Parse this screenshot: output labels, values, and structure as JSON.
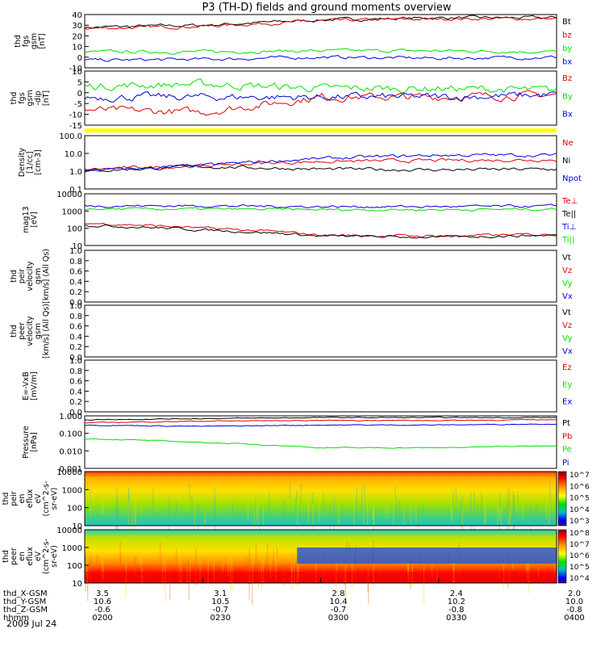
{
  "title": "P3 (TH-D) fields and ground moments overview",
  "date": "2009 Jul 24",
  "colors": {
    "black": "#000000",
    "red": "#e00000",
    "blue": "#0000e0",
    "green": "#00e000",
    "yellow": "#ffff00"
  },
  "x_axis": {
    "rows": [
      {
        "label": "thd_X-GSM",
        "values": [
          "3.5",
          "3.1",
          "2.8",
          "2.4",
          "2.0"
        ]
      },
      {
        "label": "thd_Y-GSM",
        "values": [
          "10.6",
          "10.5",
          "10.4",
          "10.2",
          "10.0"
        ]
      },
      {
        "label": "thd_Z-GSM",
        "values": [
          "-0.6",
          "-0.7",
          "-0.7",
          "-0.8",
          "-0.8"
        ]
      },
      {
        "label": "hhmm",
        "values": [
          "0200",
          "0230",
          "0300",
          "0330",
          "0400"
        ]
      }
    ]
  },
  "panels": [
    {
      "ylabel": [
        "thd",
        "fgs",
        "gsm",
        "[nT]"
      ],
      "ticks": [
        "40",
        "30",
        "20",
        "10",
        "0",
        "-10"
      ],
      "legend": [
        {
          "text": "Bt",
          "color": "#000000"
        },
        {
          "text": "bz",
          "color": "#e00000"
        },
        {
          "text": "by",
          "color": "#00e000"
        },
        {
          "text": "bx",
          "color": "#0000e0"
        }
      ]
    },
    {
      "ylabel": [
        "thd",
        "fgs",
        "gsm",
        "-dip",
        "[nT]"
      ],
      "ticks": [
        "10",
        "5",
        "0",
        "-5",
        "-10",
        "-15"
      ],
      "legend": [
        {
          "text": "Bz",
          "color": "#e00000"
        },
        {
          "text": "By",
          "color": "#00e000"
        },
        {
          "text": "Bx",
          "color": "#0000e0"
        }
      ]
    },
    {
      "ylabel": [
        "Density",
        "[1/cc]",
        "[cm-3]"
      ],
      "ticks": [
        "100.0",
        "10.0",
        "1.0",
        "0.1"
      ],
      "legend": [
        {
          "text": "Ne",
          "color": "#e00000"
        },
        {
          "text": "Ni",
          "color": "#000000"
        },
        {
          "text": "Npot",
          "color": "#0000e0"
        }
      ]
    },
    {
      "ylabel": [
        "mag13",
        "[eV]"
      ],
      "ticks": [
        "10000",
        "1000",
        "100",
        "10"
      ],
      "legend": [
        {
          "text": "Te⊥",
          "color": "#e00000"
        },
        {
          "text": "Te||",
          "color": "#000000"
        },
        {
          "text": "Ti⊥",
          "color": "#0000e0"
        },
        {
          "text": "Ti||",
          "color": "#00e000"
        }
      ]
    },
    {
      "ylabel": [
        "thd",
        "peir",
        "velocity",
        "gsm",
        "[km/s] (All Qs)"
      ],
      "ticks": [
        "1.0",
        "0.8",
        "0.6",
        "0.4",
        "0.2",
        "0.0"
      ],
      "legend": [
        {
          "text": "Vt",
          "color": "#000000"
        },
        {
          "text": "Vz",
          "color": "#e00000"
        },
        {
          "text": "Vy",
          "color": "#00e000"
        },
        {
          "text": "Vx",
          "color": "#0000e0"
        }
      ]
    },
    {
      "ylabel": [
        "thd",
        "peer",
        "velocity",
        "gsm",
        "[km/s] (All Qs)"
      ],
      "ticks": [
        "1.0",
        "0.8",
        "0.6",
        "0.4",
        "0.2",
        "0.0"
      ],
      "legend": [
        {
          "text": "Vt",
          "color": "#000000"
        },
        {
          "text": "Vz",
          "color": "#e00000"
        },
        {
          "text": "Vy",
          "color": "#00e000"
        },
        {
          "text": "Vx",
          "color": "#0000e0"
        }
      ]
    },
    {
      "ylabel": [
        "E=-VxB",
        "[mV/m]"
      ],
      "ticks": [
        "1.0",
        "0.8",
        "0.6",
        "0.4",
        "0.2",
        "0.0"
      ],
      "legend": [
        {
          "text": "Ez",
          "color": "#e00000"
        },
        {
          "text": "Ey",
          "color": "#00e000"
        },
        {
          "text": "Ex",
          "color": "#0000e0"
        }
      ]
    },
    {
      "ylabel": [
        "Pressure",
        "[nPa]"
      ],
      "ticks": [
        "1.000",
        "0.100",
        "0.010",
        "0.001"
      ],
      "legend": [
        {
          "text": "Pt",
          "color": "#000000"
        },
        {
          "text": "Pb",
          "color": "#e00000"
        },
        {
          "text": "Pe",
          "color": "#00e000"
        },
        {
          "text": "Pi",
          "color": "#0000e0"
        }
      ]
    },
    {
      "ylabel": [
        "thd",
        "peir",
        "en",
        "eflux",
        "eV",
        "(cm^2-s-",
        "sr-eV)"
      ],
      "ticks": [
        "10000",
        "1000",
        "100",
        "10"
      ],
      "colorbar": [
        "10^7",
        "10^6",
        "10^5",
        "10^4",
        "10^3"
      ]
    },
    {
      "ylabel": [
        "thd",
        "peer",
        "en",
        "eflux",
        "eV",
        "(cm^2-s-",
        "sr-eV)"
      ],
      "ticks": [
        "10000",
        "1000",
        "100",
        "10"
      ],
      "colorbar": [
        "10^8",
        "10^7",
        "10^6",
        "10^5",
        "10^4"
      ]
    }
  ],
  "chart_data": [
    {
      "type": "line",
      "title": "P3 (TH-D) fields and ground moments overview",
      "ylabel": "thd fgs gsm [nT]",
      "ylim": [
        -10,
        40
      ],
      "x": [
        "0200",
        "0230",
        "0300",
        "0330",
        "0400"
      ],
      "series": [
        {
          "name": "Bt",
          "values": [
            28,
            30,
            35,
            37,
            37
          ]
        },
        {
          "name": "bz",
          "values": [
            27,
            29,
            34,
            36,
            36
          ]
        },
        {
          "name": "by",
          "values": [
            5,
            5,
            6,
            6,
            5
          ]
        },
        {
          "name": "bx",
          "values": [
            -3,
            -2,
            0,
            -1,
            0
          ]
        }
      ]
    },
    {
      "type": "line",
      "ylabel": "thd fgs gsm-dip [nT]",
      "ylim": [
        -15,
        10
      ],
      "x": [
        "0200",
        "0230",
        "0300",
        "0330",
        "0400"
      ],
      "series": [
        {
          "name": "Bz",
          "values": [
            -8,
            -9,
            -2,
            -2,
            -1
          ]
        },
        {
          "name": "By",
          "values": [
            3,
            4,
            2,
            2,
            1
          ]
        },
        {
          "name": "Bx",
          "values": [
            -2,
            -2,
            -2,
            -2,
            -1
          ]
        }
      ]
    },
    {
      "type": "line",
      "ylabel": "Density [1/cc] [cm-3]",
      "ylim": [
        0.1,
        100
      ],
      "log": true,
      "x": [
        "0200",
        "0230",
        "0300",
        "0330",
        "0400"
      ],
      "series": [
        {
          "name": "Ne",
          "values": [
            1.2,
            2.0,
            3.5,
            4.0,
            4.5
          ]
        },
        {
          "name": "Ni",
          "values": [
            1.0,
            1.8,
            1.3,
            1.2,
            1.3
          ]
        },
        {
          "name": "Npot",
          "values": [
            1.0,
            2.0,
            5.0,
            8.0,
            8.0
          ]
        }
      ]
    },
    {
      "type": "line",
      "ylabel": "mag13 [eV]",
      "ylim": [
        10,
        10000
      ],
      "log": true,
      "x": [
        "0200",
        "0230",
        "0300",
        "0330",
        "0400"
      ],
      "series": [
        {
          "name": "Te⊥",
          "values": [
            200,
            100,
            40,
            35,
            45
          ]
        },
        {
          "name": "Te||",
          "values": [
            150,
            80,
            35,
            30,
            40
          ]
        },
        {
          "name": "Ti⊥",
          "values": [
            2000,
            2000,
            1800,
            1800,
            1900
          ]
        },
        {
          "name": "Ti||",
          "values": [
            1300,
            1300,
            1200,
            1200,
            1300
          ]
        }
      ]
    },
    {
      "type": "line",
      "ylabel": "thd peir velocity gsm [km/s] (All Qs)",
      "ylim": [
        0,
        1
      ],
      "series": []
    },
    {
      "type": "line",
      "ylabel": "thd peer velocity gsm [km/s] (All Qs)",
      "ylim": [
        0,
        1
      ],
      "series": []
    },
    {
      "type": "line",
      "ylabel": "E=-VxB [mV/m]",
      "ylim": [
        0,
        1
      ],
      "series": []
    },
    {
      "type": "line",
      "ylabel": "Pressure [nPa]",
      "ylim": [
        0.001,
        1
      ],
      "log": true,
      "x": [
        "0200",
        "0230",
        "0300",
        "0330",
        "0400"
      ],
      "series": [
        {
          "name": "Pt",
          "values": [
            0.6,
            0.7,
            0.8,
            0.8,
            0.8
          ]
        },
        {
          "name": "Pb",
          "values": [
            0.4,
            0.5,
            0.55,
            0.55,
            0.6
          ]
        },
        {
          "name": "Pe",
          "values": [
            0.05,
            0.03,
            0.015,
            0.015,
            0.02
          ]
        },
        {
          "name": "Pi",
          "values": [
            0.3,
            0.25,
            0.3,
            0.3,
            0.35
          ]
        }
      ]
    },
    {
      "type": "heatmap",
      "ylabel": "thd peir en eflux eV (cm^2-s-sr-eV)",
      "ylim": [
        10,
        10000
      ],
      "log": true
    },
    {
      "type": "heatmap",
      "ylabel": "thd peer en eflux eV (cm^2-s-sr-eV)",
      "ylim": [
        10,
        10000
      ],
      "log": true
    }
  ]
}
